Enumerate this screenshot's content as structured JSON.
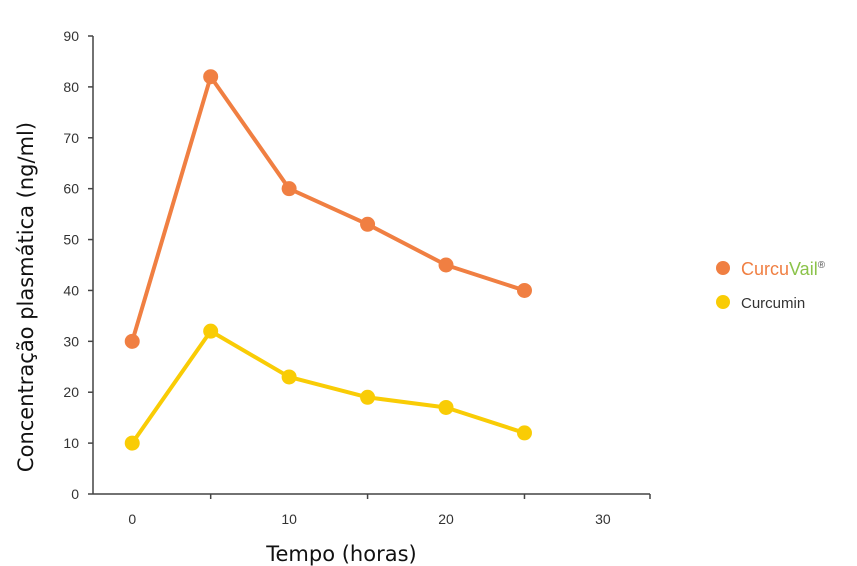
{
  "chart_data": {
    "type": "line",
    "xlabel": "Tempo (horas)",
    "ylabel": "Concentração plasmática (ng/ml)",
    "xlim": [
      -2.5,
      33
    ],
    "ylim": [
      0,
      90
    ],
    "x_ticks": [
      0,
      10,
      20,
      30
    ],
    "y_ticks": [
      0,
      10,
      20,
      30,
      40,
      50,
      60,
      70,
      80,
      90
    ],
    "grid": false,
    "legend_position": "right",
    "x": [
      0,
      5,
      10,
      15,
      20,
      25
    ],
    "series": [
      {
        "name": "CurcuVail®",
        "name_parts": [
          "Curcu",
          "Vail",
          "®"
        ],
        "color": "#F07F42",
        "values": [
          30,
          82,
          60,
          53,
          45,
          40
        ]
      },
      {
        "name": "Curcumin",
        "color": "#F9CC05",
        "values": [
          10,
          32,
          23,
          19,
          17,
          12
        ]
      }
    ],
    "brand_colors": {
      "curcu": "#F07F42",
      "vail": "#8BC34A",
      "reg": "#555555"
    }
  }
}
